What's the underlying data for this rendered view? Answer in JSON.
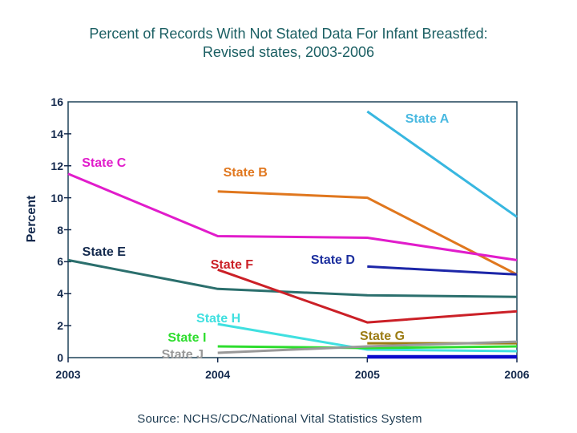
{
  "header": {
    "title_line1": "Percent of Records With Not Stated Data For Infant Breastfed:",
    "title_line2": "Revised states, 2003-2006"
  },
  "footer": {
    "source": "Source: NCHS/CDC/National Vital Statistics System"
  },
  "colors": {
    "title_text": "#1b5f63",
    "axis_text": "#13294d",
    "source_text": "#1e3c52",
    "plot_border": "#1e4258",
    "background": "#ffffff"
  },
  "chart_data": {
    "type": "line",
    "x": [
      2003,
      2004,
      2005,
      2006
    ],
    "x_tick_labels": [
      "2003",
      "2004",
      "2005",
      "2006"
    ],
    "xlabel": "",
    "ylabel": "Percent",
    "ylim": [
      0,
      16
    ],
    "yticks": [
      0,
      2,
      4,
      6,
      8,
      10,
      12,
      14,
      16
    ],
    "grid": false,
    "legend": "inline-series-labels",
    "series": [
      {
        "name": "State A",
        "color": "#38b7e0",
        "label_color": "#49b9e1",
        "values": [
          null,
          null,
          15.4,
          8.8
        ],
        "label_pos": {
          "x_frac": 0.8,
          "y_frac": 0.07
        }
      },
      {
        "name": "State B",
        "color": "#e0771e",
        "label_color": "#e0771e",
        "values": [
          null,
          10.4,
          10.0,
          5.2
        ],
        "label_pos": {
          "x_frac": 0.395,
          "y_frac": 0.28
        }
      },
      {
        "name": "State C",
        "color": "#e11ccb",
        "label_color": "#e11ccb",
        "values": [
          11.5,
          7.6,
          7.5,
          6.1
        ],
        "label_pos": {
          "x_frac": 0.08,
          "y_frac": 0.24
        }
      },
      {
        "name": "State D",
        "color": "#1c26a8",
        "label_color": "#1c2f9e",
        "values": [
          null,
          null,
          5.7,
          5.2
        ],
        "label_pos": {
          "x_frac": 0.59,
          "y_frac": 0.62
        }
      },
      {
        "name": "State E",
        "color": "#2b6f6d",
        "label_color": "#13294d",
        "values": [
          6.1,
          4.3,
          3.9,
          3.8
        ],
        "label_pos": {
          "x_frac": 0.08,
          "y_frac": 0.59
        }
      },
      {
        "name": "State F",
        "color": "#cb2027",
        "label_color": "#cb2027",
        "values": [
          null,
          5.5,
          2.2,
          2.9
        ],
        "label_pos": {
          "x_frac": 0.365,
          "y_frac": 0.64
        }
      },
      {
        "name": "State G",
        "color": "#9c7c14",
        "label_color": "#9c7c14",
        "values": [
          null,
          null,
          0.9,
          0.9
        ],
        "label_pos": {
          "x_frac": 0.7,
          "y_frac": 0.92
        }
      },
      {
        "name": "State H",
        "color": "#40e0e0",
        "label_color": "#40e0e0",
        "values": [
          null,
          2.1,
          0.5,
          0.4
        ],
        "label_pos": {
          "x_frac": 0.335,
          "y_frac": 0.85
        }
      },
      {
        "name": "State I",
        "color": "#2edd2e",
        "label_color": "#2edd2e",
        "values": [
          null,
          0.7,
          0.6,
          0.7
        ],
        "label_pos": {
          "x_frac": 0.265,
          "y_frac": 0.925
        }
      },
      {
        "name": "State J",
        "color": "#999999",
        "label_color": "#999999",
        "values": [
          null,
          0.3,
          0.7,
          1.0
        ],
        "label_pos": {
          "x_frac": 0.255,
          "y_frac": 0.99
        }
      },
      {
        "name": "",
        "color": "#0a0acc",
        "label_color": "",
        "values": [
          null,
          null,
          0.05,
          0.05
        ],
        "label_pos": null
      }
    ]
  }
}
